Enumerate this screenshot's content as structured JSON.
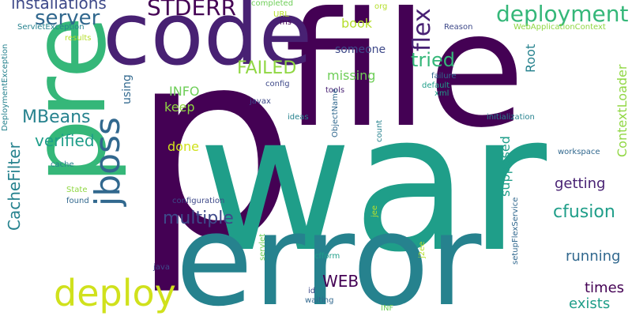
{
  "word_cloud": {
    "words": [
      {
        "text": "p",
        "color": "#440154"
      },
      {
        "text": "war",
        "color": "#1f9e89"
      },
      {
        "text": "error",
        "color": "#26828e"
      },
      {
        "text": "file",
        "color": "#440154"
      },
      {
        "text": "code",
        "color": "#482173"
      },
      {
        "text": "pre",
        "color": "#35b779"
      },
      {
        "text": "deploy",
        "color": "#d0e11c"
      },
      {
        "text": "jboss",
        "color": "#31688e"
      },
      {
        "text": "deployment",
        "color": "#35b779"
      },
      {
        "text": "server",
        "color": "#31688e"
      },
      {
        "text": "flex",
        "color": "#482173"
      },
      {
        "text": "STDERR",
        "color": "#440154"
      },
      {
        "text": "installations",
        "color": "#3e4989"
      },
      {
        "text": "tried",
        "color": "#35b779"
      },
      {
        "text": "FAILED",
        "color": "#90d743"
      },
      {
        "text": "multiple",
        "color": "#3e4989"
      },
      {
        "text": "CacheFilter",
        "color": "#26828e"
      },
      {
        "text": "MBeans",
        "color": "#26828e"
      },
      {
        "text": "verified",
        "color": "#1f9e89"
      },
      {
        "text": "cfusion",
        "color": "#1f9e89"
      },
      {
        "text": "WEB",
        "color": "#440154"
      },
      {
        "text": "running",
        "color": "#31688e"
      },
      {
        "text": "times",
        "color": "#440154"
      },
      {
        "text": "exists",
        "color": "#1f9e89"
      },
      {
        "text": "getting",
        "color": "#482173"
      },
      {
        "text": "ContextLoader",
        "color": "#90d743"
      },
      {
        "text": "supposed",
        "color": "#1f9e89"
      },
      {
        "text": "Root",
        "color": "#26828e"
      },
      {
        "text": "INFO",
        "color": "#6ece58"
      },
      {
        "text": "keep",
        "color": "#90d743"
      },
      {
        "text": "done",
        "color": "#d0e11c"
      },
      {
        "text": "missing",
        "color": "#6ece58"
      },
      {
        "text": "someone",
        "color": "#3e4989"
      },
      {
        "text": "book",
        "color": "#b5de2b"
      },
      {
        "text": "using",
        "color": "#31688e"
      },
      {
        "text": "completed",
        "color": "#6ece58"
      },
      {
        "text": "org",
        "color": "#b5de2b"
      },
      {
        "text": "WebApplicationContext",
        "color": "#90d743"
      },
      {
        "text": "ServletException",
        "color": "#26828e"
      },
      {
        "text": "results",
        "color": "#b5de2b"
      },
      {
        "text": "DeploymentException",
        "color": "#26828e"
      },
      {
        "text": "Reason",
        "color": "#3e4989"
      },
      {
        "text": "URL",
        "color": "#b5de2b"
      },
      {
        "text": "ms",
        "color": "#440154"
      },
      {
        "text": "failure",
        "color": "#31688e"
      },
      {
        "text": "default",
        "color": "#1f9e89"
      },
      {
        "text": "xml",
        "color": "#1f9e89"
      },
      {
        "text": "config",
        "color": "#3e4989"
      },
      {
        "text": "tools",
        "color": "#482173"
      },
      {
        "text": "javax",
        "color": "#3e4989"
      },
      {
        "text": "ideas",
        "color": "#26828e"
      },
      {
        "text": "ObjectName",
        "color": "#31688e"
      },
      {
        "text": "initialization",
        "color": "#26828e"
      },
      {
        "text": "count",
        "color": "#26828e"
      },
      {
        "text": "cache",
        "color": "#26828e"
      },
      {
        "text": "State",
        "color": "#90d743"
      },
      {
        "text": "found",
        "color": "#31688e"
      },
      {
        "text": "configuration",
        "color": "#3e4989"
      },
      {
        "text": "workspace",
        "color": "#31688e"
      },
      {
        "text": "setupFlexService",
        "color": "#31688e"
      },
      {
        "text": "jee",
        "color": "#b5de2b"
      },
      {
        "text": "servlet",
        "color": "#6ece58"
      },
      {
        "text": "j2ee",
        "color": "#b5de2b"
      },
      {
        "text": "cfform",
        "color": "#1f9e89"
      },
      {
        "text": "java",
        "color": "#3e4989"
      },
      {
        "text": "id",
        "color": "#3e4989"
      },
      {
        "text": "waiting",
        "color": "#31688e"
      },
      {
        "text": "INF",
        "color": "#6ece58"
      }
    ]
  }
}
